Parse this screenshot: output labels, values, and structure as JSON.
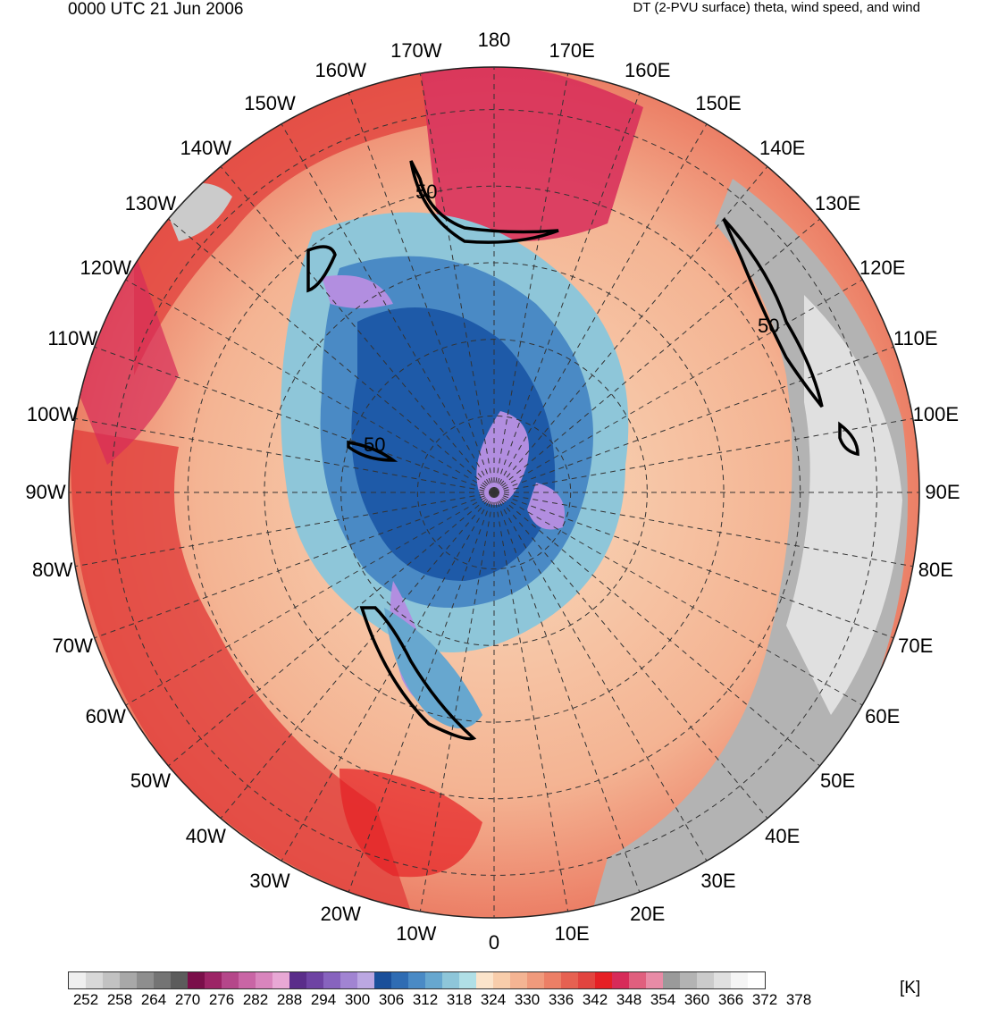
{
  "header": {
    "time_label": "0000 UTC 21 Jun 2006",
    "field_label": "DT (2-PVU surface) theta, wind speed, and wind"
  },
  "map": {
    "projection": "north polar stereographic",
    "longitude_labels": [
      "180",
      "170E",
      "160E",
      "150E",
      "140E",
      "130E",
      "120E",
      "110E",
      "100E",
      "90E",
      "80E",
      "70E",
      "60E",
      "50E",
      "40E",
      "30E",
      "20E",
      "10E",
      "0",
      "10W",
      "20W",
      "30W",
      "40W",
      "50W",
      "60W",
      "70W",
      "80W",
      "90W",
      "100W",
      "110W",
      "120W",
      "130W",
      "140W",
      "150W",
      "160W",
      "170W"
    ],
    "contour_labels": [
      "50",
      "50",
      "50"
    ],
    "colors": {
      "warm_red": "#ee3333",
      "salmon": "#f4a07e",
      "peach": "#f9d9bb",
      "light_blue": "#a8d8e2",
      "mid_blue": "#5aa6cf",
      "deep_blue": "#1e5aa8",
      "lavender": "#b28ee0",
      "gray": "#b5b5b5",
      "magenta": "#d7335e"
    }
  },
  "colorbar": {
    "unit": "[K]",
    "tick_labels": [
      "252",
      "258",
      "264",
      "270",
      "276",
      "282",
      "288",
      "294",
      "300",
      "306",
      "312",
      "318",
      "324",
      "330",
      "336",
      "342",
      "348",
      "354",
      "360",
      "366",
      "372",
      "378"
    ],
    "colors": [
      "#efefef",
      "#d8d8d8",
      "#c2c2c2",
      "#a8a8a8",
      "#8e8e8e",
      "#747474",
      "#5c5c5c",
      "#7a0f4a",
      "#9c2466",
      "#b5478a",
      "#c965a5",
      "#d985bd",
      "#e8a8d5",
      "#5a2d8a",
      "#6e43a3",
      "#8763be",
      "#a184d2",
      "#bba7e2",
      "#1a4f9a",
      "#2f6cb3",
      "#4a8ac5",
      "#67a7cf",
      "#8ec6d9",
      "#b0dfe6",
      "#fbe4cb",
      "#f8cdab",
      "#f4b493",
      "#f09a7c",
      "#ec7f66",
      "#e66151",
      "#e2443f",
      "#e61f24",
      "#d72b59",
      "#e05f7e",
      "#e88ba6",
      "#9a9a9a",
      "#b3b3b3",
      "#cbcbcb",
      "#e0e0e0",
      "#f5f5f5",
      "#ffffff"
    ]
  }
}
